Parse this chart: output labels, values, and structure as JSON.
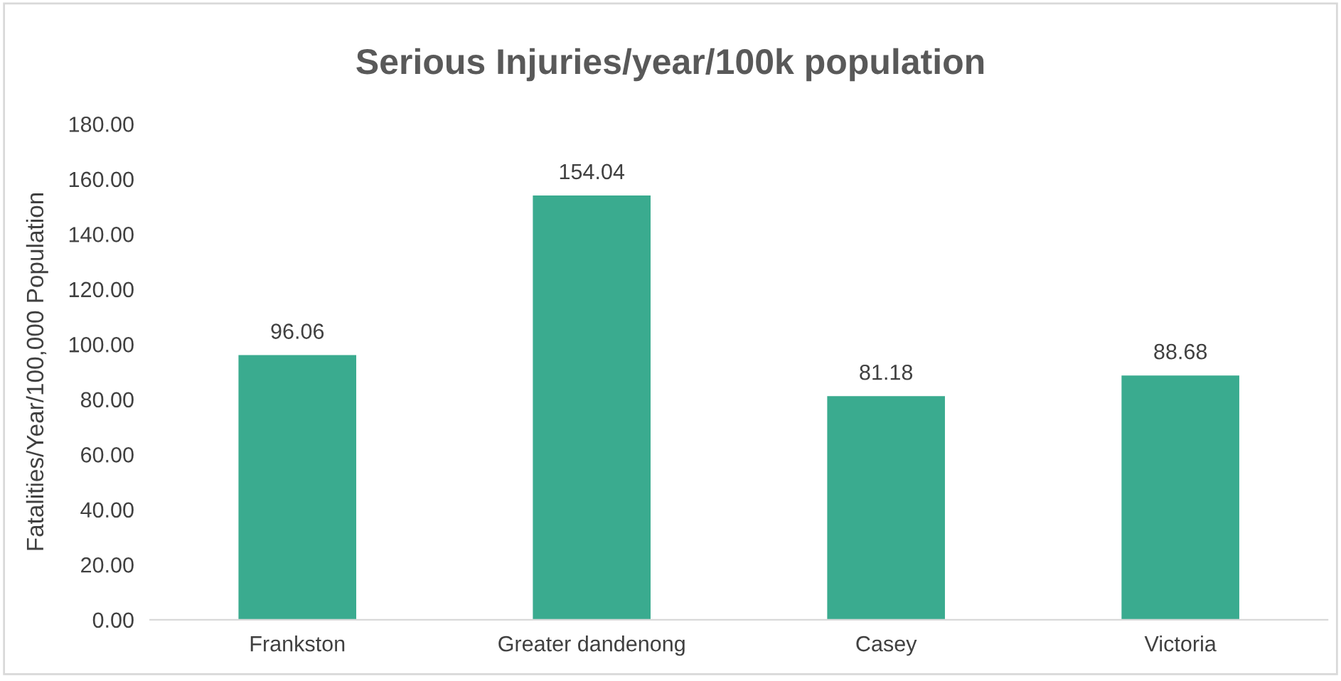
{
  "chart_data": {
    "type": "bar",
    "title": "Serious Injuries/year/100k population",
    "ylabel": "Fatalities/Year/100,000 Population",
    "categories": [
      "Frankston",
      "Greater dandenong",
      "Casey",
      "Victoria"
    ],
    "values": [
      96.06,
      154.04,
      81.18,
      88.68
    ],
    "color": "#3aab8f",
    "ylim": [
      0,
      180
    ],
    "yticks": [
      {
        "value": 0,
        "label": "0.00"
      },
      {
        "value": 20,
        "label": "20.00"
      },
      {
        "value": 40,
        "label": "40.00"
      },
      {
        "value": 60,
        "label": "60.00"
      },
      {
        "value": 80,
        "label": "80.00"
      },
      {
        "value": 100,
        "label": "100.00"
      },
      {
        "value": 120,
        "label": "120.00"
      },
      {
        "value": 140,
        "label": "140.00"
      },
      {
        "value": 160,
        "label": "160.00"
      },
      {
        "value": 180,
        "label": "180.00"
      }
    ],
    "data_labels": true,
    "grid": false,
    "legend": false
  }
}
